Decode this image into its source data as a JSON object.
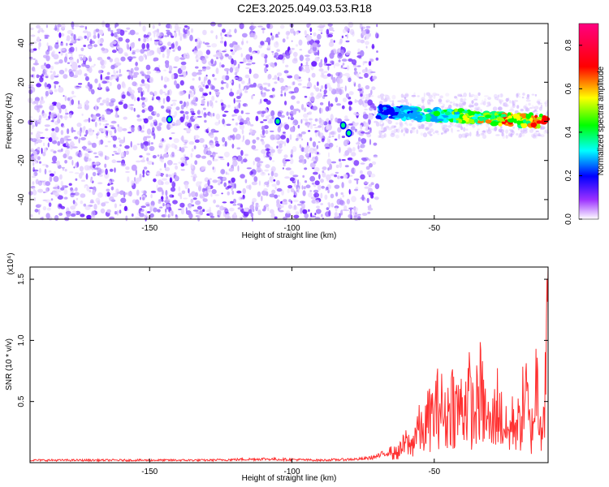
{
  "figure": {
    "title": "C2E3.2025.049.03.53.R18"
  },
  "chart_data": [
    {
      "type": "heatmap",
      "title": "C2E3.2025.049.03.53.R18",
      "xlabel": "Height of straight line (km)",
      "ylabel": "Frequency (Hz)",
      "xlim": [
        -192,
        -10
      ],
      "ylim": [
        -50,
        50
      ],
      "x_ticks": [
        -150,
        -100,
        -50
      ],
      "y_ticks": [
        -40,
        -20,
        0,
        20,
        40
      ],
      "colorbar": {
        "label": "Normalized spectral amplitude",
        "range": [
          0.0,
          0.9
        ],
        "ticks": [
          0.0,
          0.2,
          0.4,
          0.6,
          0.8
        ],
        "colormap": [
          "#ffffff",
          "#7f00ff",
          "#0000ff",
          "#00ffff",
          "#00ff00",
          "#ffff00",
          "#ff0000",
          "#ff0080"
        ]
      },
      "features": {
        "noise_region_x": [
          -192,
          -70
        ],
        "signal_band_x": [
          -70,
          -10
        ],
        "signal_band_center_hz": [
          5,
          0
        ],
        "noise_gap_x": [
          -142,
          -106
        ]
      }
    },
    {
      "type": "line",
      "xlabel": "Height of straight line (km)",
      "ylabel": "SNR (10 * v/v)",
      "multiplier_label": "(x10⁴)",
      "xlim": [
        -192,
        -10
      ],
      "ylim": [
        0,
        1.6
      ],
      "x_ticks": [
        -150,
        -100,
        -50
      ],
      "y_ticks": [
        0.5,
        1.0,
        1.5
      ],
      "series": [
        {
          "color": "#ff3030",
          "x": [
            -192,
            -170,
            -150,
            -130,
            -110,
            -90,
            -75,
            -70,
            -65,
            -62,
            -60,
            -58,
            -56,
            -54,
            -52,
            -50,
            -48,
            -46,
            -44,
            -42,
            -40,
            -38,
            -36,
            -34,
            -32,
            -30,
            -28,
            -26,
            -24,
            -22,
            -20,
            -18,
            -16,
            -14,
            -12,
            -10
          ],
          "y": [
            0.02,
            0.02,
            0.02,
            0.02,
            0.03,
            0.02,
            0.03,
            0.05,
            0.1,
            0.15,
            0.25,
            0.2,
            0.45,
            0.35,
            0.55,
            0.6,
            0.75,
            0.5,
            0.8,
            0.65,
            0.7,
            0.85,
            0.55,
            0.9,
            0.6,
            0.4,
            0.75,
            0.5,
            0.35,
            0.55,
            0.45,
            0.9,
            0.3,
            1.05,
            0.45,
            1.6
          ]
        }
      ]
    }
  ]
}
